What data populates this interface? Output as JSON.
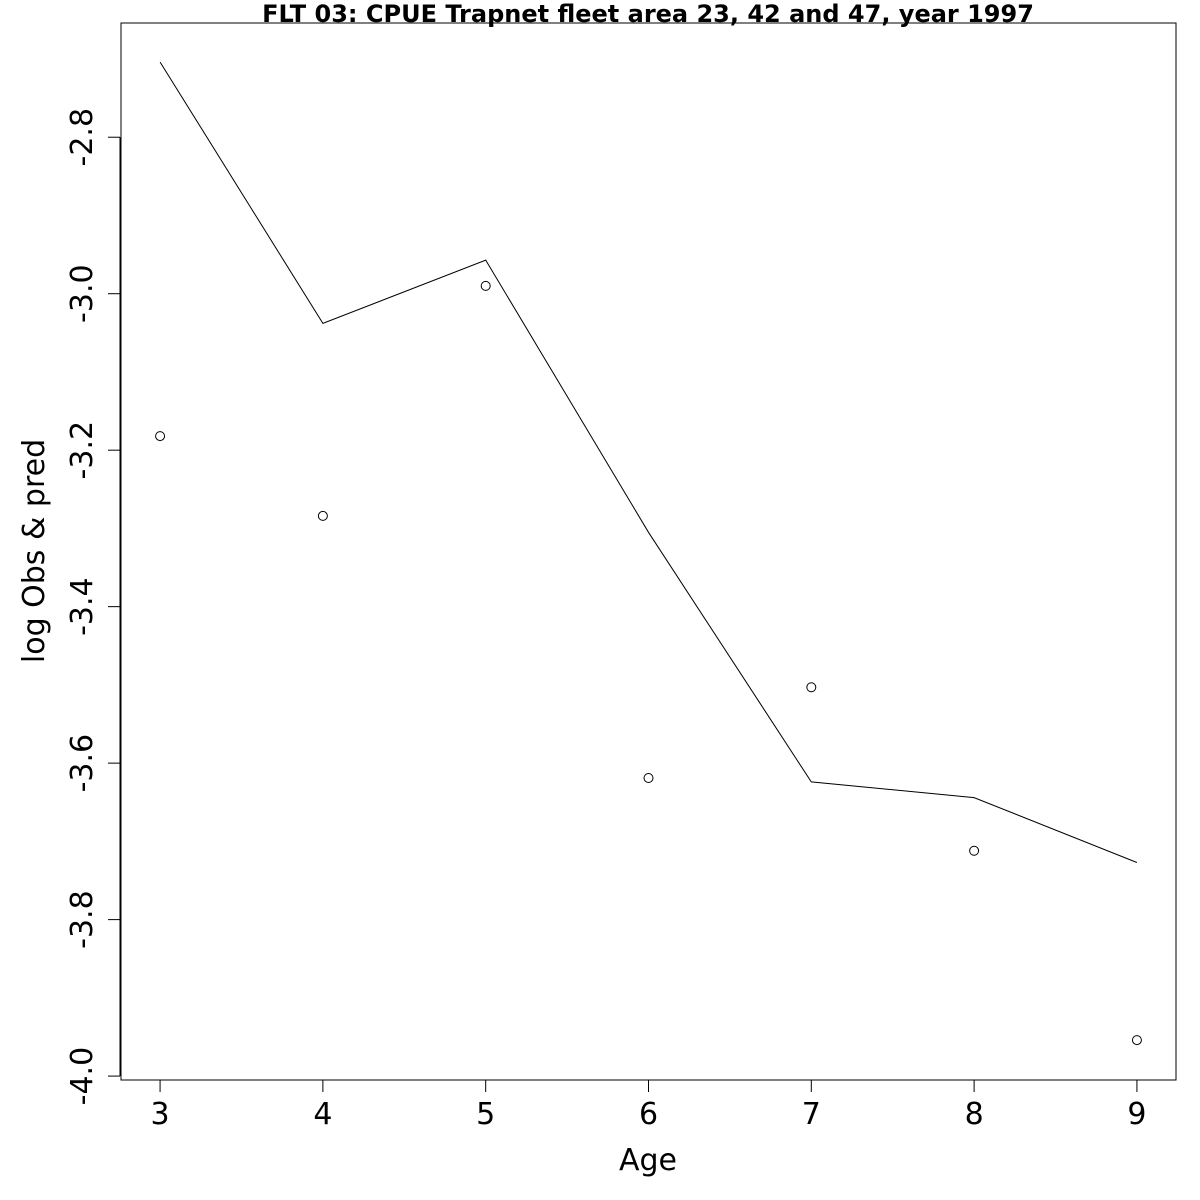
{
  "chart_data": {
    "type": "line",
    "title": "FLT 03: CPUE Trapnet fleet area 23, 42 and 47, year 1997",
    "xlabel": "Age",
    "ylabel": "log Obs & pred",
    "x": [
      3,
      4,
      5,
      6,
      7,
      8,
      9
    ],
    "xlim": [
      2.76,
      9.24
    ],
    "ylim": [
      -4.005,
      -2.654
    ],
    "x_ticks": [
      3,
      4,
      5,
      6,
      7,
      8,
      9
    ],
    "y_ticks": [
      -4.0,
      -3.8,
      -3.6,
      -3.4,
      -3.2,
      -3.0,
      -2.8
    ],
    "y_tick_labels": [
      "-4.0",
      "-3.8",
      "-3.6",
      "-3.4",
      "-3.2",
      "-3.0",
      "-2.8"
    ],
    "x_tick_labels": [
      "3",
      "4",
      "5",
      "6",
      "7",
      "8",
      "9"
    ],
    "grid": false,
    "series": [
      {
        "style": "line",
        "color": "#000000",
        "values": [
          -2.704,
          -3.038,
          -2.957,
          -3.305,
          -3.624,
          -3.644,
          -3.727
        ]
      },
      {
        "style": "points",
        "marker": "open-circle",
        "color": "#000000",
        "values": [
          -3.182,
          -3.284,
          -2.99,
          -3.619,
          -3.503,
          -3.712,
          -3.954
        ]
      }
    ]
  }
}
